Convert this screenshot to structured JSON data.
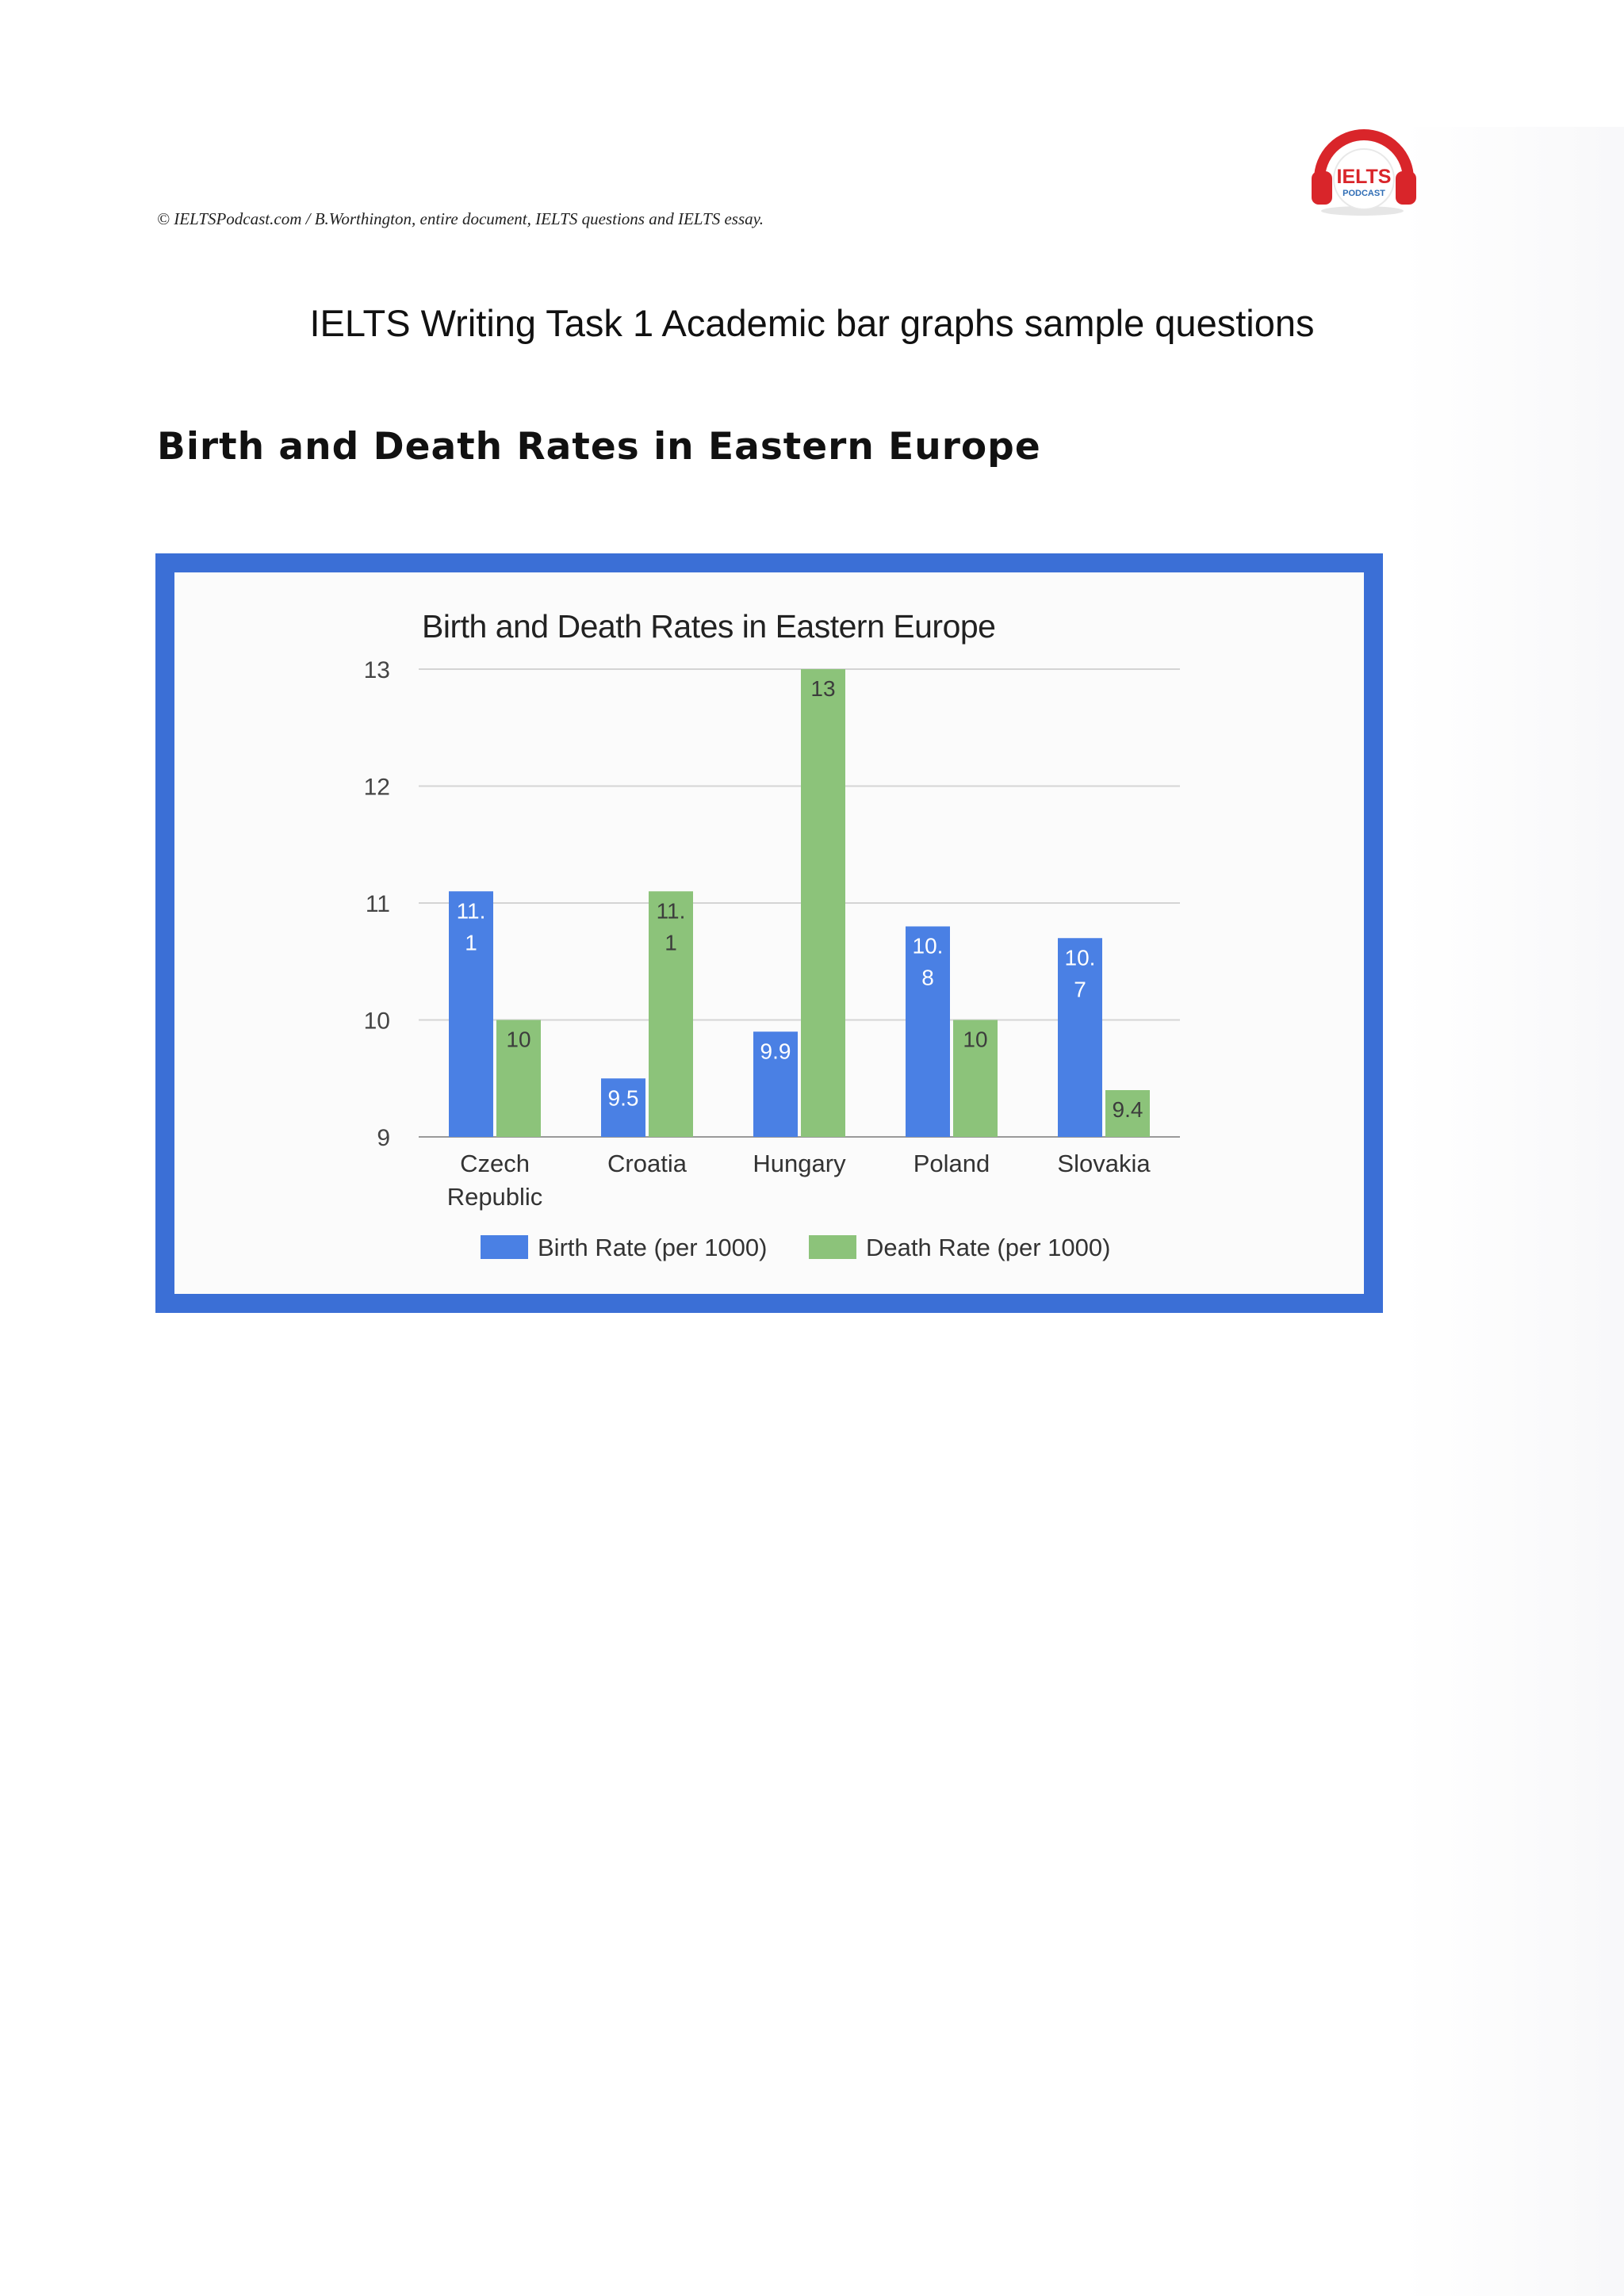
{
  "header": {
    "copyright": "© IELTSPodcast.com / B.Worthington, entire document, IELTS questions and IELTS essay.",
    "logo_top": "IELTS",
    "logo_bottom": "PODCAST"
  },
  "page": {
    "heading": "IELTS Writing Task 1 Academic bar graphs sample questions",
    "section_title": "Birth and Death Rates in Eastern Europe"
  },
  "colors": {
    "frame": "#3b6fd6",
    "birth": "#4a80e4",
    "death": "#8cc37a",
    "gridline": "#d4d4d4"
  },
  "chart_data": {
    "type": "bar",
    "title": "Birth and Death Rates in Eastern Europe",
    "xlabel": "",
    "ylabel": "",
    "categories": [
      "Czech Republic",
      "Croatia",
      "Hungary",
      "Poland",
      "Slovakia"
    ],
    "category_lines": [
      [
        "Czech",
        "Republic"
      ],
      [
        "Croatia"
      ],
      [
        "Hungary"
      ],
      [
        "Poland"
      ],
      [
        "Slovakia"
      ]
    ],
    "series": [
      {
        "name": "Birth Rate (per 1000)",
        "values": [
          11.1,
          9.5,
          9.9,
          10.8,
          10.7
        ],
        "labels": [
          [
            "11.",
            "1"
          ],
          [
            "9.5"
          ],
          [
            "9.9"
          ],
          [
            "10.",
            "8"
          ],
          [
            "10.",
            "7"
          ]
        ]
      },
      {
        "name": "Death Rate (per 1000)",
        "values": [
          10,
          11.1,
          13,
          10,
          9.4
        ],
        "labels": [
          [
            "10"
          ],
          [
            "11.",
            "1"
          ],
          [
            "13"
          ],
          [
            "10"
          ],
          [
            "9.4"
          ]
        ]
      }
    ],
    "ylim": [
      9,
      13
    ],
    "yticks": [
      9,
      10,
      11,
      12,
      13
    ],
    "grid": true,
    "legend_position": "bottom"
  }
}
